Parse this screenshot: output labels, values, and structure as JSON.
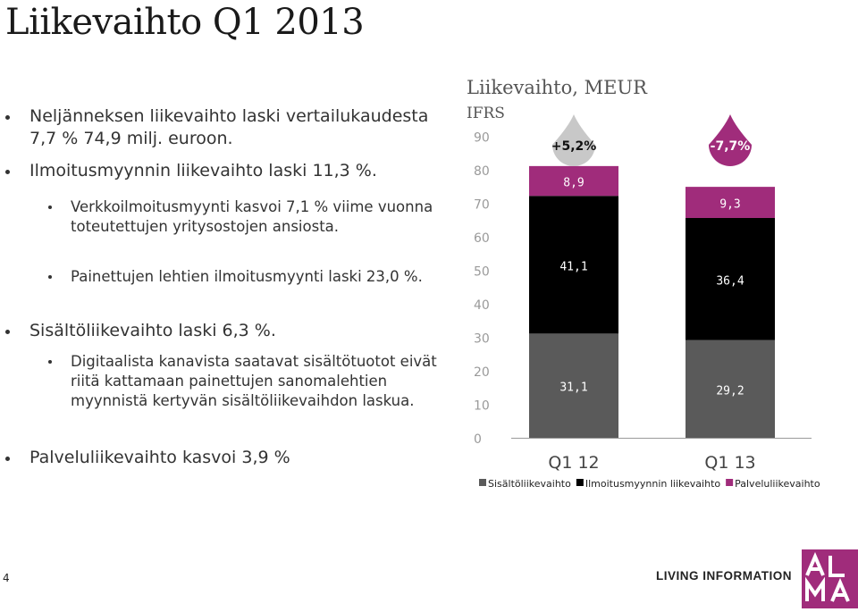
{
  "page": {
    "title": "Liikevaihto Q1 2013",
    "page_number": "4",
    "footer_text": "LIVING INFORMATION",
    "logo_text": "ALMA"
  },
  "bullets": [
    {
      "level": 1,
      "text": "Neljänneksen liikevaihto laski vertailukaudesta 7,7 % 74,9 milj. euroon."
    },
    {
      "level": 1,
      "text": "Ilmoitusmyynnin liikevaihto laski 11,3 %."
    },
    {
      "level": 2,
      "text": "Verkkoilmoitusmyynti kasvoi 7,1 % viime vuonna toteutettujen yritysostojen ansiosta."
    },
    {
      "level": 2,
      "text": "Painettujen lehtien ilmoitusmyynti laski 23,0 %."
    },
    {
      "level": 1,
      "text": "Sisältöliikevaihto laski 6,3 %."
    },
    {
      "level": 2,
      "text": "Digitaalista kanavista saatavat sisältötuotot eivät riitä kattamaan painettujen sanomalehtien myynnistä kertyvän sisältöliikevaihdon laskua."
    },
    {
      "level": 1,
      "text": "Palveluliikevaihto kasvoi 3,9 %"
    }
  ],
  "chart_data": {
    "type": "bar",
    "stacked": true,
    "title": "Liikevaihto, MEUR",
    "subtitle": "IFRS",
    "categories": [
      "Q1 12",
      "Q1 13"
    ],
    "series": [
      {
        "name": "Sisältöliikevaihto",
        "values": [
          31.1,
          29.2
        ],
        "labels": [
          "31,1",
          "29,2"
        ],
        "color": "#5a5a5a"
      },
      {
        "name": "Ilmoitusmyynnin liikevaihto",
        "values": [
          41.1,
          36.4
        ],
        "labels": [
          "41,1",
          "36,4"
        ],
        "color": "#000000"
      },
      {
        "name": "Palveluliikevaihto",
        "values": [
          8.9,
          9.3
        ],
        "labels": [
          "8,9",
          "9,3"
        ],
        "color": "#a02c7b"
      }
    ],
    "change_labels": [
      {
        "text": "+5,2%",
        "color": "#c8c8c8"
      },
      {
        "text": "-7,7%",
        "color": "#a02c7b"
      }
    ],
    "ylim": [
      0,
      90
    ],
    "yticks": [
      "0",
      "10",
      "20",
      "30",
      "40",
      "50",
      "60",
      "70",
      "80",
      "90"
    ],
    "grid": false,
    "legend_position": "bottom"
  }
}
